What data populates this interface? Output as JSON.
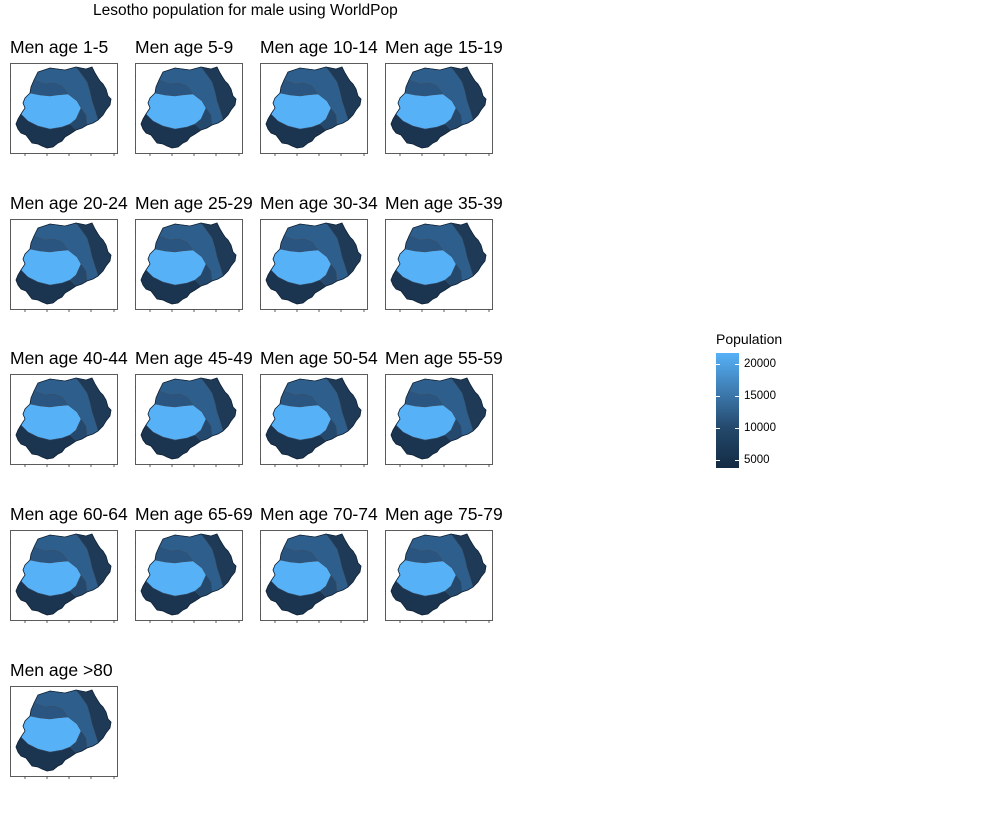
{
  "title": "Lesotho population for male using WorldPop",
  "legend": {
    "title": "Population",
    "labels": [
      "20000",
      "15000",
      "10000",
      "5000"
    ],
    "colors": {
      "low": "#132b43",
      "high": "#56b1f7"
    }
  },
  "chart_data": {
    "type": "choropleth-map-facets",
    "title": "Lesotho population for male using WorldPop",
    "legend_title": "Population",
    "legend_breaks": [
      20000,
      15000,
      10000,
      5000
    ],
    "panels": [
      "Men age 1-5",
      "Men age 5-9",
      "Men age 10-14",
      "Men age 15-19",
      "Men age 20-24",
      "Men age 25-29",
      "Men age 30-34",
      "Men age 35-39",
      "Men age 40-44",
      "Men age 45-49",
      "Men age 50-54",
      "Men age 55-59",
      "Men age 60-64",
      "Men age 65-69",
      "Men age 70-74",
      "Men age 75-79",
      "Men age >80"
    ]
  }
}
